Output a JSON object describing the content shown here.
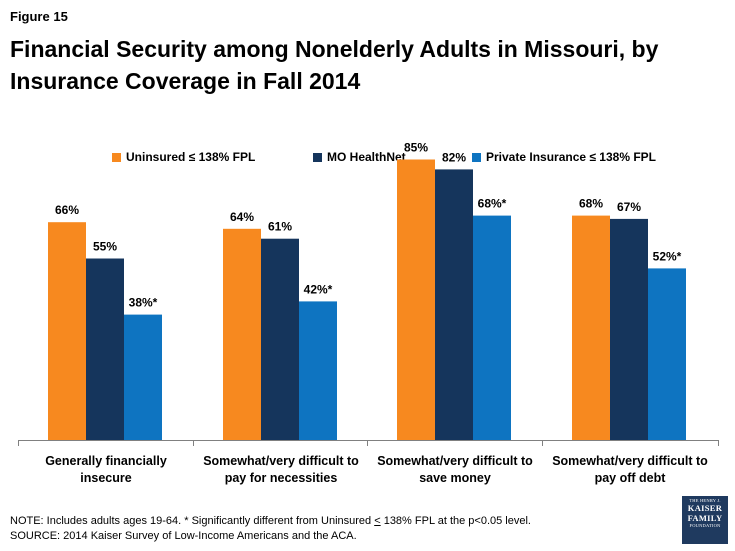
{
  "figure_label": "Figure 15",
  "title": "Financial Security among Nonelderly Adults in Missouri, by Insurance Coverage in Fall 2014",
  "colors": {
    "uninsured": "#f7891f",
    "mo_healthnet": "#15355c",
    "private": "#0e74c1",
    "axis": "#808080"
  },
  "chart_data": {
    "type": "bar",
    "categories": [
      [
        "Generally financially insecure"
      ],
      [
        "Somewhat/very difficult to",
        "pay for necessities"
      ],
      [
        "Somewhat/very difficult to",
        "save money"
      ],
      [
        "Somewhat/very difficult to",
        "pay off debt"
      ]
    ],
    "series": [
      {
        "name": "Uninsured ≤ 138% FPL",
        "color": "#f7891f",
        "values": [
          66,
          64,
          85,
          68
        ],
        "labels": [
          "66%",
          "64%",
          "85%",
          "68%"
        ]
      },
      {
        "name": "MO HealthNet",
        "color": "#15355c",
        "values": [
          55,
          61,
          82,
          67
        ],
        "labels": [
          "55%",
          "61%",
          "82%",
          "67%"
        ]
      },
      {
        "name": "Private Insurance ≤ 138% FPL",
        "color": "#0e74c1",
        "values": [
          38,
          42,
          68,
          52
        ],
        "labels": [
          "38%*",
          "42%*",
          "68%*",
          "52%*"
        ]
      }
    ],
    "ylim": [
      0,
      100
    ],
    "grid": false,
    "legend_position": "top"
  },
  "note": {
    "line1_prefix": "NOTE: Includes adults ages 19-64. * Significantly different from Uninsured ",
    "line1_underlined": "<",
    "line1_suffix": " 138% FPL at the p<0.05 level.",
    "line2": "SOURCE: 2014 Kaiser Survey of Low-Income Americans and the ACA."
  },
  "logo": {
    "line1": "THE HENRY J.",
    "line2": "KAISER",
    "line3": "FAMILY",
    "line4": "FOUNDATION"
  }
}
